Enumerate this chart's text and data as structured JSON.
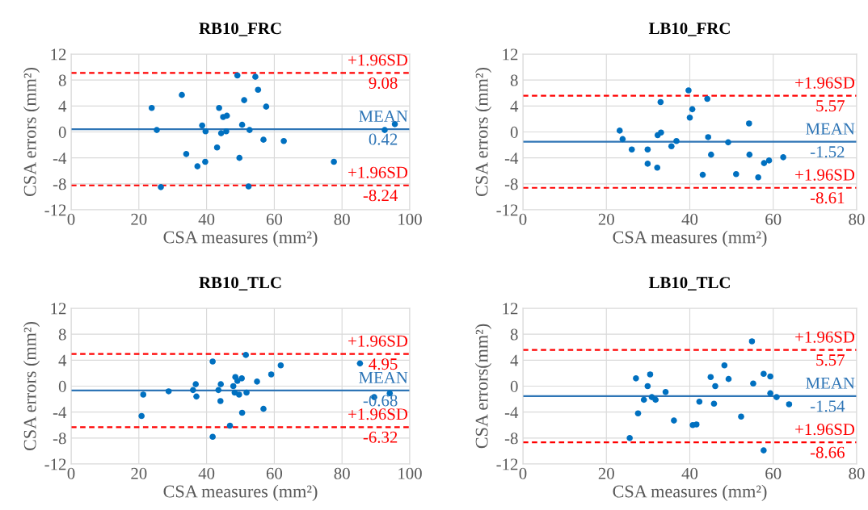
{
  "chart_data": [
    {
      "type": "scatter",
      "title": "RB10_FRC",
      "xlabel": "CSA measures (mm²)",
      "ylabel": "CSA errors (mm²)",
      "xlim": [
        0,
        100
      ],
      "xticks": [
        0,
        20,
        40,
        60,
        80,
        100
      ],
      "ylim": [
        -12,
        12
      ],
      "yticks": [
        -12,
        -8,
        -4,
        0,
        4,
        8,
        12
      ],
      "grid": true,
      "marker": "circle",
      "series": [
        {
          "color": "#0070c0",
          "x": [
            49.1,
            54.4,
            55.2,
            32.7,
            51.1,
            23.8,
            43.7,
            57.6,
            44.9,
            46.0,
            38.7,
            50.5,
            95.6,
            25.3,
            39.7,
            44.3,
            45.8,
            52.7,
            92.6,
            56.8,
            62.8,
            43.1,
            34.0,
            49.7,
            39.6,
            37.3,
            77.6,
            26.5,
            52.4
          ],
          "values": [
            8.7,
            8.5,
            6.5,
            5.7,
            4.9,
            3.7,
            3.7,
            3.9,
            2.3,
            2.5,
            1.0,
            1.1,
            1.2,
            0.3,
            0.1,
            -0.2,
            0.1,
            0.3,
            0.3,
            -1.2,
            -1.4,
            -2.4,
            -3.4,
            -4.0,
            -4.6,
            -5.3,
            -4.6,
            -8.5,
            -8.4
          ]
        }
      ],
      "ref_lines": [
        {
          "axis": "y",
          "value": 9.08,
          "label": "+1.96SD",
          "color": "#ff0000",
          "line_style": "dashed"
        },
        {
          "axis": "y",
          "value": 0.42,
          "label": "MEAN",
          "color": "#2e75b6",
          "line_style": "solid"
        },
        {
          "axis": "y",
          "value": -8.24,
          "label": "+1.96SD",
          "color": "#ff0000",
          "line_style": "dashed"
        }
      ],
      "annotations": [
        "9.08",
        "0.42",
        "-8.24"
      ]
    },
    {
      "type": "scatter",
      "title": "LB10_FRC",
      "xlabel": "CSA measures (mm²)",
      "ylabel": "CSA errors (mm²)",
      "xlim": [
        0,
        80
      ],
      "xticks": [
        0,
        20,
        40,
        60,
        80
      ],
      "ylim": [
        -12,
        12
      ],
      "yticks": [
        -12,
        -8,
        -4,
        0,
        4,
        8,
        12
      ],
      "grid": true,
      "marker": "circle",
      "series": [
        {
          "color": "#0070c0",
          "x": [
            39.7,
            33.0,
            44.2,
            40.6,
            40.0,
            23.2,
            54.2,
            23.9,
            32.3,
            33.1,
            44.4,
            36.8,
            35.6,
            49.2,
            26.1,
            29.9,
            29.9,
            32.2,
            45.1,
            54.3,
            62.4,
            59.0,
            57.8,
            43.1,
            51.1,
            56.4
          ],
          "values": [
            6.4,
            4.6,
            5.1,
            3.5,
            2.2,
            0.2,
            1.3,
            -1.1,
            -0.5,
            -0.1,
            -0.8,
            -1.4,
            -2.2,
            -1.6,
            -2.7,
            -2.7,
            -4.9,
            -5.5,
            -3.5,
            -3.5,
            -3.9,
            -4.4,
            -4.8,
            -6.6,
            -6.5,
            -7.0
          ]
        }
      ],
      "ref_lines": [
        {
          "axis": "y",
          "value": 5.57,
          "label": "+1.96SD",
          "color": "#ff0000",
          "line_style": "dashed"
        },
        {
          "axis": "y",
          "value": -1.52,
          "label": "MEAN",
          "color": "#2e75b6",
          "line_style": "solid"
        },
        {
          "axis": "y",
          "value": -8.61,
          "label": "+1.96SD",
          "color": "#ff0000",
          "line_style": "dashed"
        }
      ],
      "annotations": [
        "5.57",
        "-1.52",
        "-8.61"
      ]
    },
    {
      "type": "scatter",
      "title": "RB10_TLC",
      "xlabel": "CSA measures (mm²)",
      "ylabel": "CSA errors (mm²)",
      "xlim": [
        0,
        100
      ],
      "xticks": [
        0,
        20,
        40,
        60,
        80,
        100
      ],
      "ylim": [
        -12,
        12
      ],
      "yticks": [
        -12,
        -8,
        -4,
        0,
        4,
        8,
        12
      ],
      "grid": true,
      "marker": "circle",
      "series": [
        {
          "color": "#0070c0",
          "x": [
            51.6,
            41.8,
            85.3,
            61.9,
            59.1,
            48.5,
            50.4,
            49.1,
            54.9,
            36.8,
            44.2,
            47.9,
            28.8,
            36.0,
            43.5,
            48.3,
            49.6,
            51.8,
            21.3,
            37.0,
            89.5,
            94.1,
            44.1,
            56.8,
            50.5,
            20.8,
            46.9,
            41.8
          ],
          "values": [
            4.8,
            3.8,
            3.5,
            3.2,
            1.8,
            1.4,
            1.2,
            0.8,
            0.7,
            0.3,
            0.3,
            0.0,
            -0.8,
            -0.6,
            -0.6,
            -1.0,
            -1.3,
            -1.0,
            -1.3,
            -1.6,
            -1.7,
            -1.1,
            -2.3,
            -3.5,
            -4.1,
            -4.6,
            -6.1,
            -7.8
          ]
        }
      ],
      "ref_lines": [
        {
          "axis": "y",
          "value": 4.95,
          "label": "+1.96SD",
          "color": "#ff0000",
          "line_style": "dashed"
        },
        {
          "axis": "y",
          "value": -0.68,
          "label": "MEAN",
          "color": "#2e75b6",
          "line_style": "solid"
        },
        {
          "axis": "y",
          "value": -6.32,
          "label": "+1.96SD",
          "color": "#ff0000",
          "line_style": "dashed"
        }
      ],
      "annotations": [
        "4.95",
        "-0.68",
        "-6.32"
      ]
    },
    {
      "type": "scatter",
      "title": "LB10_TLC",
      "xlabel": "CSA measures (mm²)",
      "ylabel": "CSA errors(mm²)",
      "xlim": [
        0,
        80
      ],
      "xticks": [
        0,
        20,
        40,
        60,
        80
      ],
      "ylim": [
        -12,
        12
      ],
      "yticks": [
        -12,
        -8,
        -4,
        0,
        4,
        8,
        12
      ],
      "grid": true,
      "marker": "circle",
      "series": [
        {
          "color": "#0070c0",
          "x": [
            54.9,
            48.3,
            57.7,
            30.5,
            27.1,
            45.0,
            49.3,
            59.3,
            29.9,
            46.1,
            55.2,
            34.2,
            59.3,
            60.8,
            30.9,
            31.8,
            29.0,
            42.3,
            45.8,
            63.8,
            27.6,
            36.2,
            52.3,
            40.7,
            41.6,
            25.6,
            57.7
          ],
          "values": [
            6.9,
            3.2,
            1.9,
            1.8,
            1.2,
            1.4,
            1.1,
            1.5,
            0.0,
            0.0,
            0.4,
            -0.9,
            -1.1,
            -1.7,
            -1.7,
            -2.1,
            -2.1,
            -2.4,
            -2.7,
            -2.8,
            -4.2,
            -5.3,
            -4.7,
            -6.0,
            -5.9,
            -8.0,
            -9.9
          ]
        }
      ],
      "ref_lines": [
        {
          "axis": "y",
          "value": 5.57,
          "label": "+1.96SD",
          "color": "#ff0000",
          "line_style": "dashed"
        },
        {
          "axis": "y",
          "value": -1.54,
          "label": "MEAN",
          "color": "#2e75b6",
          "line_style": "solid"
        },
        {
          "axis": "y",
          "value": -8.66,
          "label": "+1.96SD",
          "color": "#ff0000",
          "line_style": "dashed"
        }
      ],
      "annotations": [
        "5.57",
        "-1.54",
        "-8.66"
      ]
    }
  ]
}
